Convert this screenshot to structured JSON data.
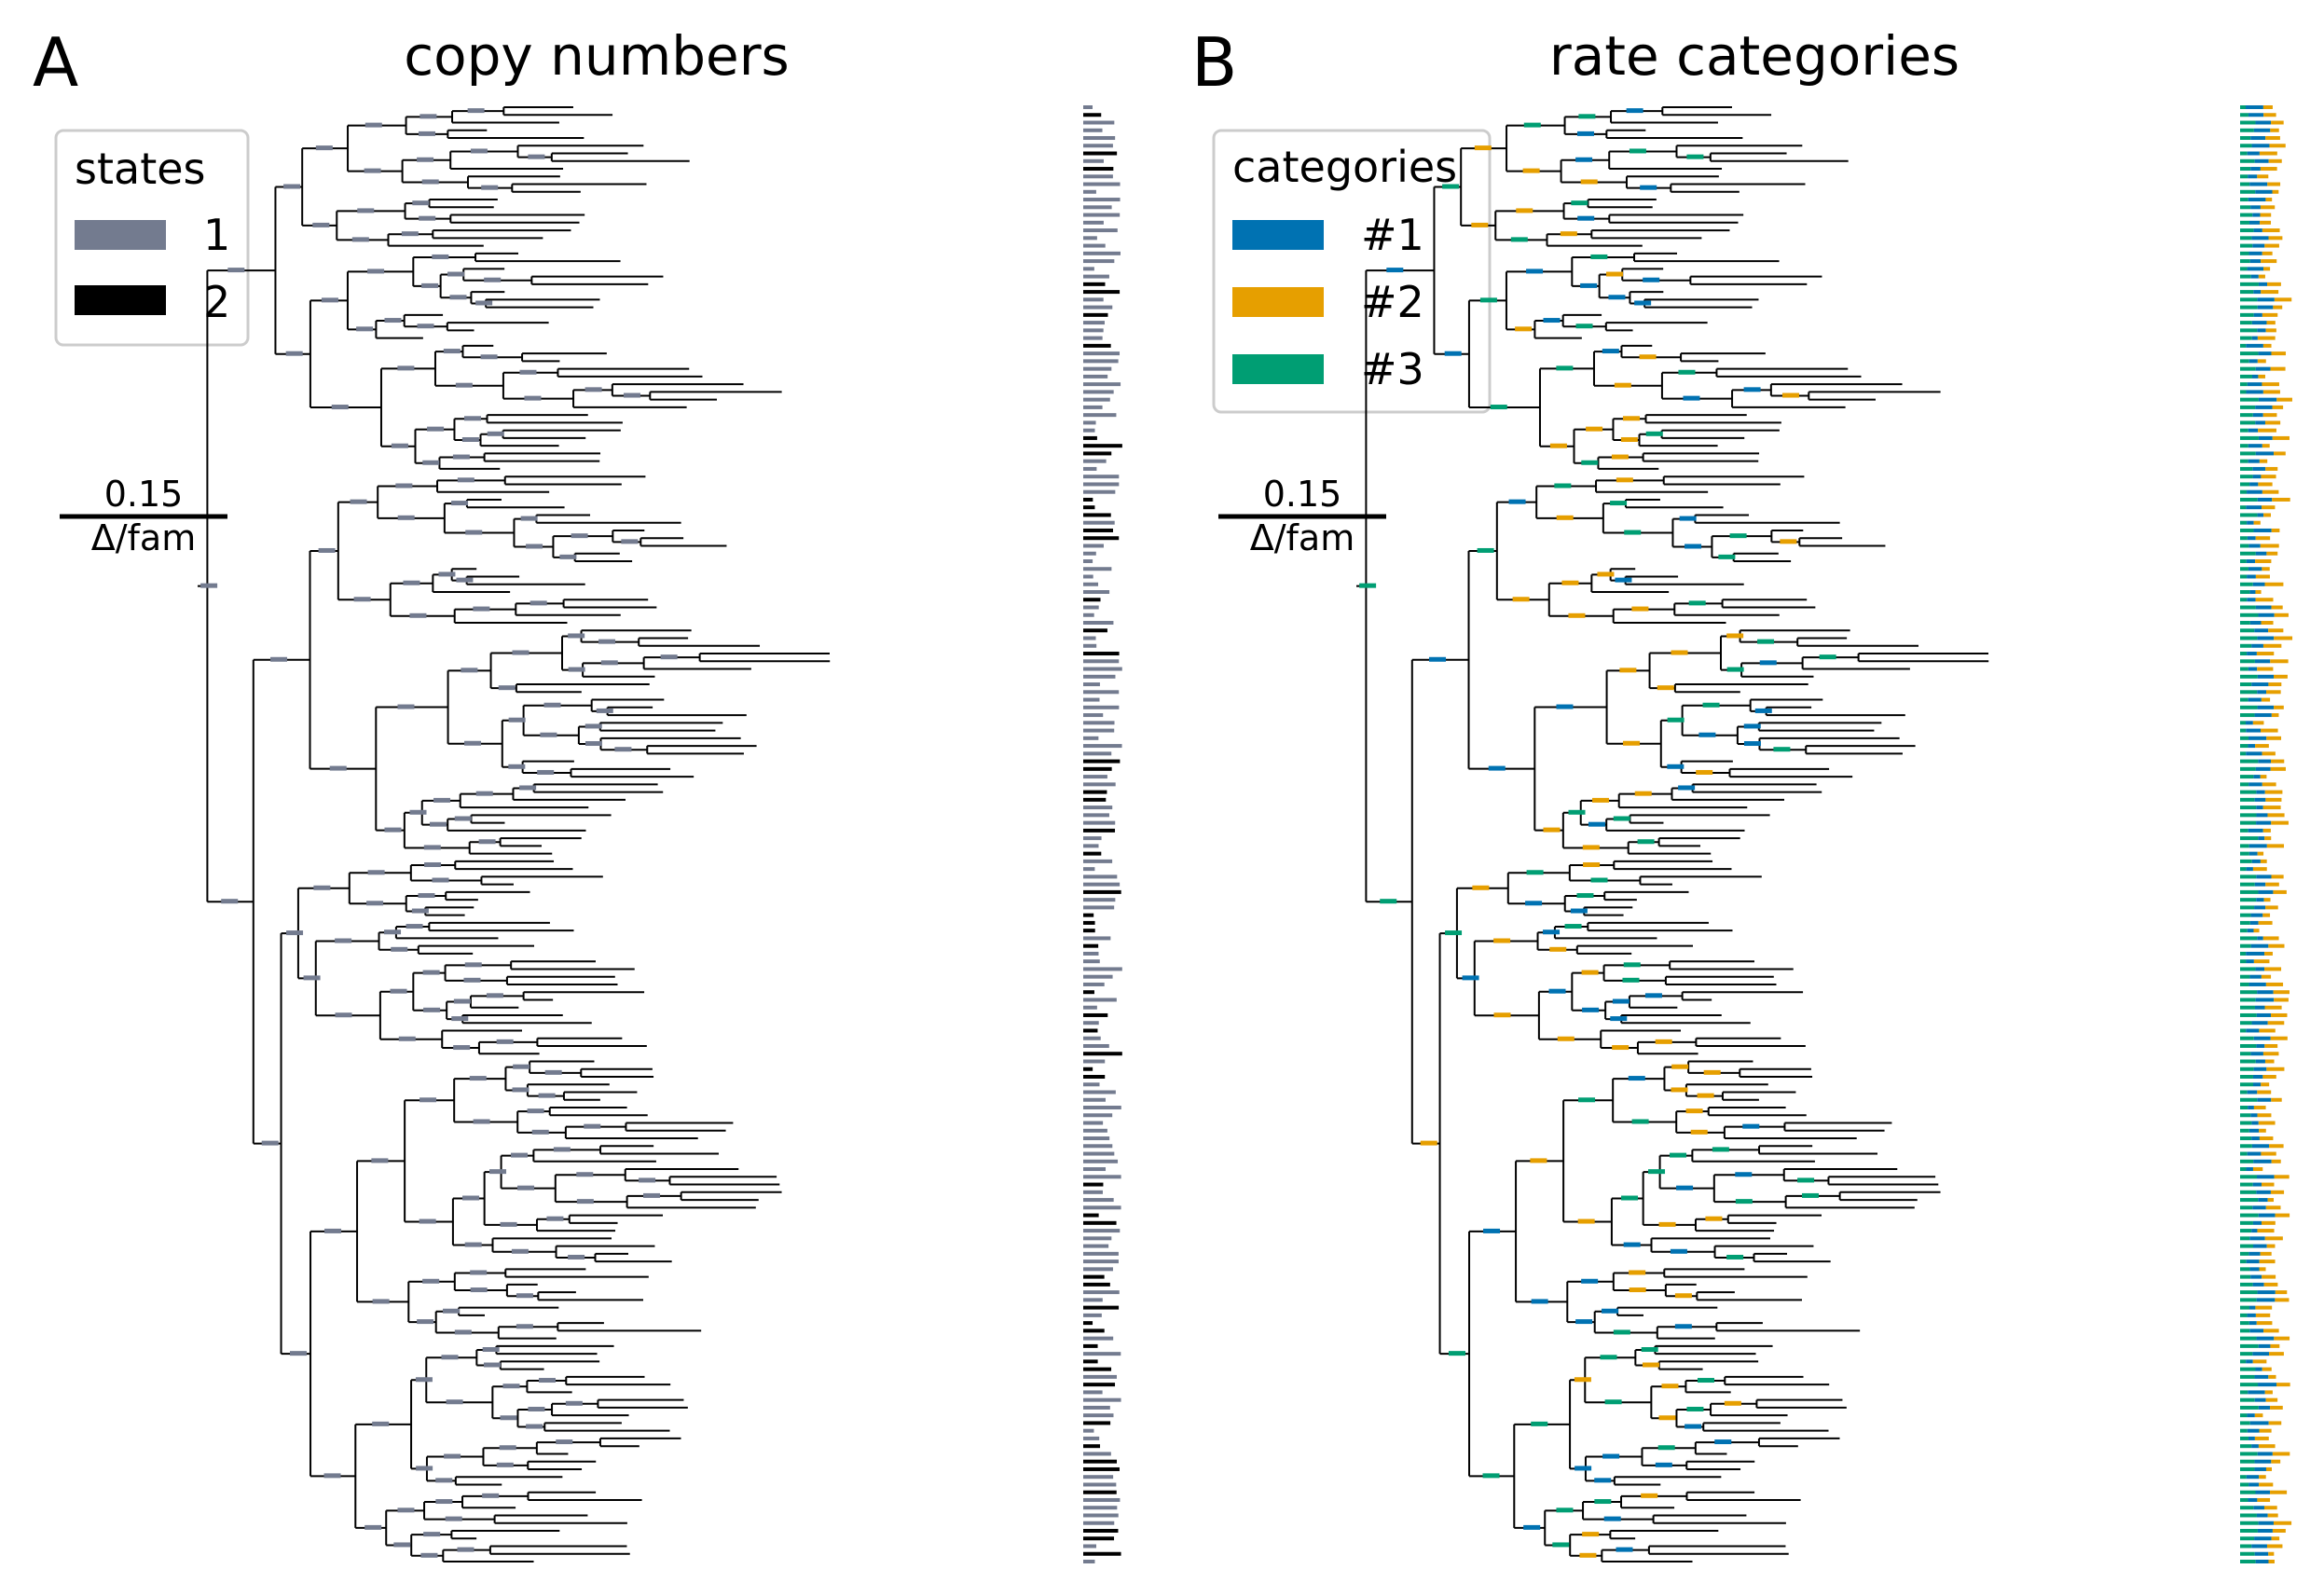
{
  "panels": [
    {
      "letter": "A",
      "title": "copy numbers",
      "legend": {
        "title": "states",
        "entries": [
          {
            "label": "1",
            "color": "#737b8f"
          },
          {
            "label": "2",
            "color": "#000000"
          }
        ]
      },
      "scale": {
        "value": "0.15",
        "unit": "Δ/fam"
      }
    },
    {
      "letter": "B",
      "title": "rate categories",
      "legend": {
        "title": "categories",
        "entries": [
          {
            "label": "#1",
            "color": "#0072b2"
          },
          {
            "label": "#2",
            "color": "#e69f00"
          },
          {
            "label": "#3",
            "color": "#009e73"
          }
        ]
      },
      "scale": {
        "value": "0.15",
        "unit": "Δ/fam"
      }
    }
  ]
}
